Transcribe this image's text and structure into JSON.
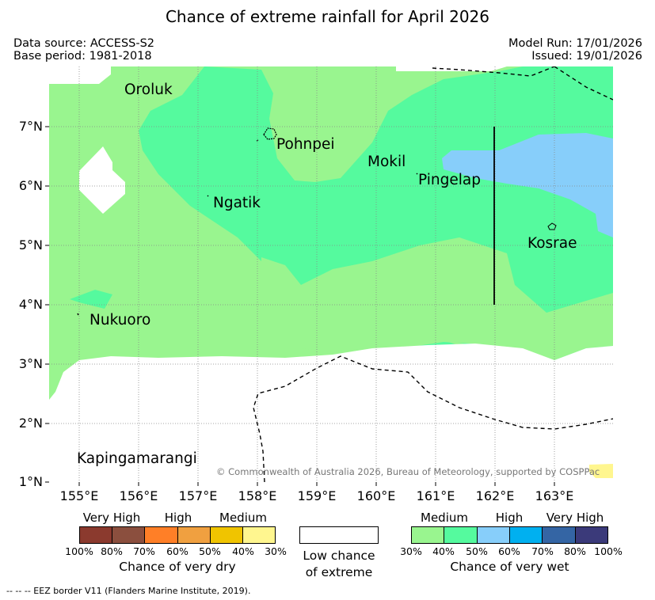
{
  "title": "Chance of extreme rainfall for April 2026",
  "header": {
    "data_source": "Data source: ACCESS-S2",
    "base_period": "Base period: 1981-2018",
    "model_run": "Model Run: 17/01/2026",
    "issued": "Issued: 19/01/2026"
  },
  "map": {
    "lat_labels": [
      "7°N",
      "6°N",
      "5°N",
      "4°N",
      "3°N",
      "2°N",
      "1°N"
    ],
    "lon_labels": [
      "155°E",
      "156°E",
      "157°E",
      "158°E",
      "159°E",
      "160°E",
      "161°E",
      "162°E",
      "163°E"
    ],
    "places": {
      "oroluk": "Oroluk",
      "pohnpei": "Pohnpei",
      "mokil": "Mokil",
      "pingelap": "Pingelap",
      "ngatik": "Ngatik",
      "kosrae": "Kosrae",
      "nukuoro": "Nukuoro",
      "kapingamarangi": "Kapingamarangi"
    },
    "copyright": "© Commonwealth of Australia 2026, Bureau of Meteorology, supported by COSPPac"
  },
  "legend": {
    "dry": {
      "categories": [
        "Very High",
        "High",
        "Medium"
      ],
      "ticks": [
        "100%",
        "80%",
        "70%",
        "60%",
        "50%",
        "40%",
        "30%"
      ],
      "title": "Chance of very dry",
      "colors": [
        "#8b3a2e",
        "#8b4f3e",
        "#ff7f27",
        "#f0a040",
        "#f0c400",
        "#fff68f"
      ]
    },
    "low": {
      "line1": "Low chance",
      "line2": "of extreme"
    },
    "wet": {
      "categories": [
        "Medium",
        "High",
        "Very High"
      ],
      "ticks": [
        "30%",
        "40%",
        "50%",
        "60%",
        "70%",
        "80%",
        "100%"
      ],
      "title": "Chance of very wet",
      "colors": [
        "#99f58f",
        "#55fa9e",
        "#87cefa",
        "#00b0f0",
        "#3465a4",
        "#3b3a7a"
      ]
    }
  },
  "colors": {
    "medium_wet_30": "#99f58f",
    "medium_wet_40": "#55fa9e",
    "high_wet_50": "#87cefa",
    "dry_30": "#fff68f"
  },
  "footnote": "--  --  -- EEZ border V11 (Flanders Marine Institute, 2019)."
}
